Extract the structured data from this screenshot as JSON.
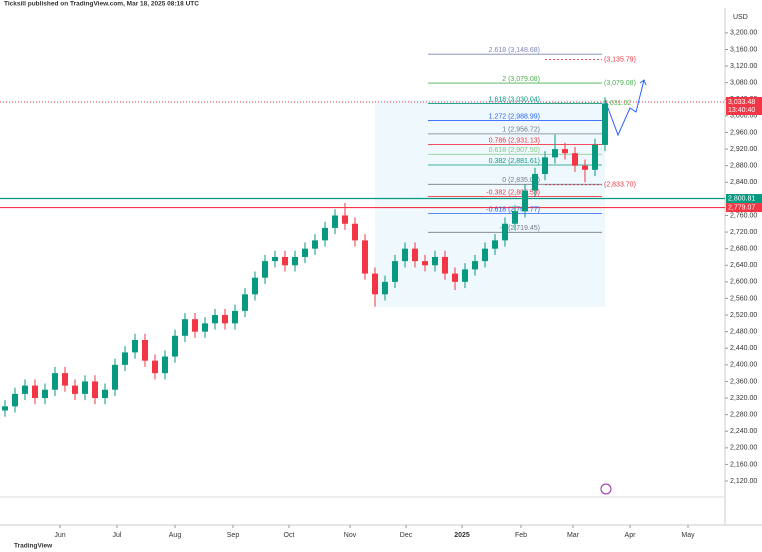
{
  "header": {
    "title": "Ticksill published on TradingView.com, Mar 18, 2025 08:18 UTC"
  },
  "footer": {
    "brand": "TradingView"
  },
  "chart_data": {
    "type": "candlestick",
    "currency": "USD",
    "open": [
      2290,
      2300,
      2330,
      2350,
      2320,
      2340,
      2380,
      2350,
      2330,
      2360,
      2320,
      2340,
      2400,
      2430,
      2460,
      2410,
      2380,
      2420,
      2470,
      2510,
      2480,
      2500,
      2520,
      2500,
      2530,
      2570,
      2610,
      2650,
      2660,
      2640,
      2660,
      2680,
      2700,
      2730,
      2760,
      2740,
      2700,
      2620,
      2570,
      2600,
      2650,
      2680,
      2650,
      2640,
      2660,
      2620,
      2600,
      2630,
      2650,
      2680,
      2700,
      2740,
      2770,
      2820,
      2860,
      2900,
      2920,
      2910,
      2880,
      2870,
      2930
    ],
    "high": [
      2315,
      2345,
      2365,
      2365,
      2355,
      2395,
      2395,
      2365,
      2375,
      2375,
      2355,
      2415,
      2445,
      2475,
      2475,
      2425,
      2435,
      2485,
      2525,
      2525,
      2515,
      2535,
      2535,
      2545,
      2585,
      2625,
      2665,
      2675,
      2675,
      2675,
      2695,
      2715,
      2745,
      2775,
      2790,
      2755,
      2715,
      2635,
      2615,
      2665,
      2695,
      2695,
      2665,
      2675,
      2675,
      2635,
      2645,
      2665,
      2695,
      2715,
      2755,
      2785,
      2835,
      2875,
      2915,
      2955,
      2935,
      2925,
      2895,
      2945,
      3045
    ],
    "low": [
      2275,
      2285,
      2315,
      2305,
      2305,
      2325,
      2335,
      2315,
      2315,
      2305,
      2305,
      2325,
      2385,
      2415,
      2395,
      2365,
      2365,
      2405,
      2455,
      2465,
      2465,
      2485,
      2485,
      2485,
      2515,
      2555,
      2595,
      2635,
      2625,
      2625,
      2645,
      2665,
      2685,
      2715,
      2725,
      2685,
      2605,
      2540,
      2555,
      2585,
      2635,
      2635,
      2625,
      2625,
      2605,
      2580,
      2585,
      2615,
      2635,
      2665,
      2685,
      2725,
      2755,
      2805,
      2845,
      2885,
      2895,
      2865,
      2840,
      2855,
      2915
    ],
    "close": [
      2300,
      2330,
      2350,
      2320,
      2340,
      2380,
      2350,
      2330,
      2360,
      2320,
      2340,
      2400,
      2430,
      2460,
      2410,
      2380,
      2420,
      2470,
      2510,
      2480,
      2500,
      2520,
      2500,
      2530,
      2570,
      2610,
      2650,
      2660,
      2640,
      2660,
      2680,
      2700,
      2730,
      2760,
      2740,
      2700,
      2620,
      2570,
      2600,
      2650,
      2680,
      2650,
      2640,
      2660,
      2620,
      2600,
      2630,
      2650,
      2680,
      2700,
      2740,
      2770,
      2820,
      2860,
      2900,
      2920,
      2910,
      2880,
      2870,
      2930,
      3030
    ],
    "colors": {
      "up": "#089981",
      "down": "#f23645"
    },
    "xlim": [
      0,
      72.5
    ],
    "xticks": [
      {
        "value": 6,
        "label": "Jun"
      },
      {
        "value": 11.7,
        "label": "Jul"
      },
      {
        "value": 17.5,
        "label": "Aug"
      },
      {
        "value": 23.3,
        "label": "Sep"
      },
      {
        "value": 28.9,
        "label": "Oct"
      },
      {
        "value": 35,
        "label": "Nov"
      },
      {
        "value": 40.6,
        "label": "Dec"
      },
      {
        "value": 46.2,
        "label": "2025"
      },
      {
        "value": 52.1,
        "label": "Feb"
      },
      {
        "value": 57.3,
        "label": "Mar"
      },
      {
        "value": 63,
        "label": "Apr"
      },
      {
        "value": 68.8,
        "label": "May"
      }
    ],
    "ylim": [
      2014,
      3260
    ],
    "yticks": [
      {
        "value": 3200,
        "label": "3,200.00"
      },
      {
        "value": 3160,
        "label": "3,160.00"
      },
      {
        "value": 3120,
        "label": "3,120.00"
      },
      {
        "value": 3080,
        "label": "3,080.00"
      },
      {
        "value": 3040,
        "label": "3,040.00"
      },
      {
        "value": 3000,
        "label": "3,000.00"
      },
      {
        "value": 2960,
        "label": "2,960.00"
      },
      {
        "value": 2920,
        "label": "2,920.00"
      },
      {
        "value": 2880,
        "label": "2,880.00"
      },
      {
        "value": 2840,
        "label": "2,840.00"
      },
      {
        "value": 2760,
        "label": "2,760.00"
      },
      {
        "value": 2720,
        "label": "2,720.00"
      },
      {
        "value": 2680,
        "label": "2,680.00"
      },
      {
        "value": 2640,
        "label": "2,640.00"
      },
      {
        "value": 2600,
        "label": "2,600.00"
      },
      {
        "value": 2560,
        "label": "2,560.00"
      },
      {
        "value": 2520,
        "label": "2,520.00"
      },
      {
        "value": 2480,
        "label": "2,480.00"
      },
      {
        "value": 2440,
        "label": "2,440.00"
      },
      {
        "value": 2400,
        "label": "2,400.00"
      },
      {
        "value": 2360,
        "label": "2,360.00"
      },
      {
        "value": 2320,
        "label": "2,320.00"
      },
      {
        "value": 2280,
        "label": "2,280.00"
      },
      {
        "value": 2240,
        "label": "2,240.00"
      },
      {
        "value": 2200,
        "label": "2,200.00"
      },
      {
        "value": 2160,
        "label": "2,160.00"
      },
      {
        "value": 2120,
        "label": "2,120.00"
      }
    ],
    "fib_levels": [
      {
        "label": "2.618 (3,148.68)",
        "value": 3148.68,
        "color": "#7a86b8"
      },
      {
        "label": "2 (3,079.08)",
        "value": 3079.08,
        "color": "#4caf50"
      },
      {
        "label": "1.618 (3,030.04)",
        "value": 3030.04,
        "color": "#089981"
      },
      {
        "label": "1.272 (2,988.99)",
        "value": 2988.99,
        "color": "#2962ff"
      },
      {
        "label": "1 (2,956.72)",
        "value": 2956.72,
        "color": "#787b86"
      },
      {
        "label": "0.786 (2,931.13)",
        "value": 2931.13,
        "color": "#f23645"
      },
      {
        "label": "0.618 (2,907.50)",
        "value": 2907.5,
        "color": "#81c784"
      },
      {
        "label": "0.382 (2,881.61)",
        "value": 2881.61,
        "color": "#089981"
      },
      {
        "label": "0 (2,835.09)",
        "value": 2835.09,
        "color": "#787b86"
      },
      {
        "label": "-0.382 (2,805.53)",
        "value": 2805.53,
        "color": "#f23645"
      },
      {
        "label": "-0.618 (2,764.77)",
        "value": 2764.77,
        "color": "#2962ff"
      },
      {
        "label": "-1 (2,719.45)",
        "value": 2719.45,
        "color": "#787b86"
      }
    ],
    "targets": [
      {
        "label": "(3,135.79)",
        "value": 3135.79,
        "color": "#f23645"
      },
      {
        "label": "(3,079.08)",
        "value": 3079.08,
        "color": "#4caf50"
      },
      {
        "label": "3,031.02",
        "value": 3031.02,
        "color": "#4caf50"
      },
      {
        "label": "(2,833.70)",
        "value": 2833.7,
        "color": "#f23645"
      }
    ],
    "price_lines": [
      {
        "label": "2,800.81",
        "value": 2800.81,
        "color": "#089981"
      },
      {
        "label": "2,779.07",
        "value": 2779.07,
        "color": "#f23645"
      }
    ],
    "last_price": {
      "label": "3,033.48",
      "value": 3033.48,
      "countdown": "13:40:40"
    }
  }
}
